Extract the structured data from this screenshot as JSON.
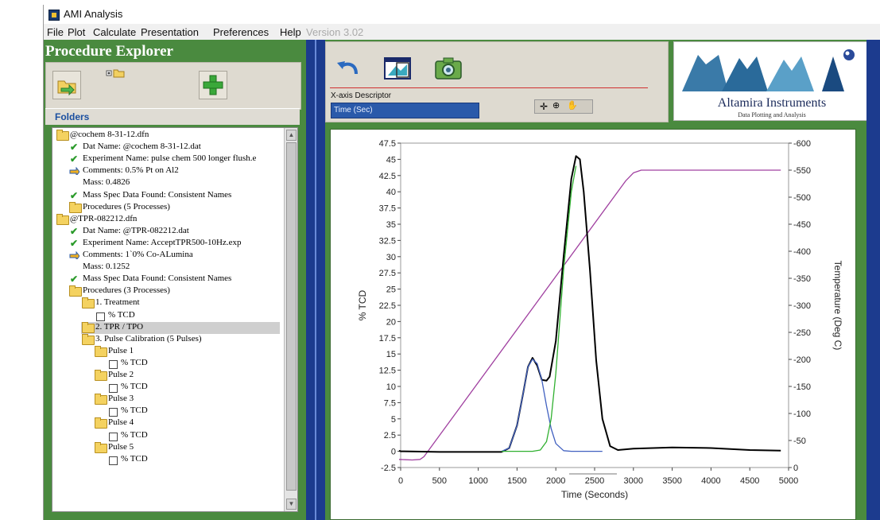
{
  "window": {
    "title": "AMI Analysis",
    "icon": "app-icon"
  },
  "menubar": {
    "items": [
      "File",
      "Plot",
      "Calculate",
      "Presentation",
      "Preferences",
      "Help"
    ],
    "version": "Version 3.02"
  },
  "explorer": {
    "title": "Procedure Explorer",
    "toolbar": {
      "open_icon": "folder-open-arrow-icon",
      "expand_icon": "expand-folders-icon",
      "add_icon": "green-plus-icon"
    },
    "folders_tab": "Folders",
    "tree": [
      {
        "indent": 0,
        "icon": "folder",
        "text": "@cochem 8-31-12.dfn"
      },
      {
        "indent": 1,
        "icon": "check",
        "text": "Dat Name: @cochem 8-31-12.dat"
      },
      {
        "indent": 1,
        "icon": "check",
        "text": "Experiment Name: pulse chem 500 longer flush.e"
      },
      {
        "indent": 1,
        "icon": "comment",
        "text": "Comments: 0.5% Pt on Al2"
      },
      {
        "indent": 1,
        "icon": "none",
        "text": "Mass: 0.4826"
      },
      {
        "indent": 1,
        "icon": "check",
        "text": "Mass Spec Data Found: Consistent Names"
      },
      {
        "indent": 1,
        "icon": "folder",
        "text": "Procedures (5 Processes)"
      },
      {
        "indent": 0,
        "icon": "folder",
        "text": "@TPR-082212.dfn"
      },
      {
        "indent": 1,
        "icon": "check",
        "text": "Dat Name: @TPR-082212.dat"
      },
      {
        "indent": 1,
        "icon": "check",
        "text": "Experiment Name: AcceptTPR500-10Hz.exp"
      },
      {
        "indent": 1,
        "icon": "comment",
        "text": "Comments: 1`0% Co-ALumina"
      },
      {
        "indent": 1,
        "icon": "none",
        "text": "Mass: 0.1252"
      },
      {
        "indent": 1,
        "icon": "check",
        "text": "Mass Spec Data Found: Consistent Names"
      },
      {
        "indent": 1,
        "icon": "folder",
        "text": "Procedures (3 Processes)"
      },
      {
        "indent": 2,
        "icon": "folder",
        "text": "1. Treatment"
      },
      {
        "indent": 3,
        "icon": "box",
        "text": "% TCD"
      },
      {
        "indent": 2,
        "icon": "folder",
        "text": "2. TPR / TPO",
        "selected": true
      },
      {
        "indent": 2,
        "icon": "folder",
        "text": "3. Pulse Calibration (5 Pulses)"
      },
      {
        "indent": 3,
        "icon": "folder",
        "text": "Pulse 1"
      },
      {
        "indent": 4,
        "icon": "box",
        "text": "% TCD"
      },
      {
        "indent": 3,
        "icon": "folder",
        "text": "Pulse 2"
      },
      {
        "indent": 4,
        "icon": "box",
        "text": "% TCD"
      },
      {
        "indent": 3,
        "icon": "folder",
        "text": "Pulse 3"
      },
      {
        "indent": 4,
        "icon": "box",
        "text": "% TCD"
      },
      {
        "indent": 3,
        "icon": "folder",
        "text": "Pulse 4"
      },
      {
        "indent": 4,
        "icon": "box",
        "text": "% TCD"
      },
      {
        "indent": 3,
        "icon": "folder",
        "text": "Pulse 5"
      },
      {
        "indent": 4,
        "icon": "box",
        "text": "% TCD"
      }
    ]
  },
  "controls": {
    "undo_icon": "undo-arrow-icon",
    "window_icon": "window-plot-icon",
    "camera_icon": "camera-icon",
    "x_axis_label": "X-axis Descriptor",
    "x_axis_value": "Time (Sec)",
    "graph_tools": [
      "crosshair-icon",
      "zoom-icon",
      "pan-hand-icon"
    ]
  },
  "logo": {
    "name": "Altamira Instruments",
    "tagline": "Data Plotting and Analysis"
  },
  "colors": {
    "panel_green": "#4a8a3f",
    "divider_blue": "#1c3b8e",
    "temperature": "#a040a0",
    "tcd": "#000000",
    "peak1": "#4060c0",
    "peak2": "#30b030"
  },
  "chart_data": {
    "type": "line",
    "xlabel": "Time (Seconds)",
    "ylabel": "% TCD",
    "y2label": "Temperature (Deg C)",
    "xlim": [
      0,
      5000
    ],
    "ylim": [
      -2.5,
      47.5
    ],
    "y2lim": [
      0,
      -600
    ],
    "x_ticks": [
      0,
      500,
      1000,
      1500,
      2000,
      2500,
      3000,
      3500,
      4000,
      4500,
      5000
    ],
    "y_ticks": [
      -2.5,
      0,
      2.5,
      5,
      7.5,
      10,
      12.5,
      15,
      17.5,
      20,
      22.5,
      25,
      27.5,
      30,
      32.5,
      35,
      37.5,
      40,
      42.5,
      45,
      47.5
    ],
    "y_tick_labels": [
      "-2.5",
      "0",
      "2.5",
      "5",
      "7.5",
      "10",
      "12.5",
      "15",
      "17.5",
      "20",
      "22.5",
      "25",
      "27.5",
      "30",
      "32.5",
      "35",
      "37.5",
      "40",
      "42.5",
      "45",
      "47.5"
    ],
    "y2_ticks": [
      0,
      -50,
      -100,
      -150,
      -200,
      -250,
      -300,
      -350,
      -400,
      -450,
      -500,
      -550,
      -600
    ],
    "series": [
      {
        "key": "temperature",
        "axis": "y2",
        "x": [
          -200,
          150,
          250,
          300,
          2900,
          3000,
          3100,
          3500,
          4000,
          4500,
          4900
        ],
        "y": [
          -15,
          -14,
          -15,
          -20,
          -530,
          -545,
          -550,
          -550,
          -550,
          -550,
          -550
        ]
      },
      {
        "key": "tcd",
        "axis": "y1",
        "x": [
          -200,
          0,
          500,
          1000,
          1300,
          1400,
          1500,
          1580,
          1640,
          1700,
          1760,
          1820,
          1880,
          1920,
          2000,
          2100,
          2200,
          2260,
          2310,
          2360,
          2440,
          2520,
          2600,
          2700,
          2800,
          3000,
          3500,
          4000,
          4500,
          4900
        ],
        "y": [
          0.1,
          0,
          -0.1,
          -0.1,
          -0.1,
          0.5,
          4,
          9,
          13,
          14.4,
          13.2,
          11,
          10.9,
          11.5,
          17,
          30,
          42,
          45.5,
          45,
          40,
          28,
          14,
          5,
          0.8,
          0.2,
          0.4,
          0.6,
          0.5,
          0.2,
          0.1
        ]
      },
      {
        "key": "peak1",
        "axis": "y1",
        "x": [
          1300,
          1400,
          1500,
          1580,
          1640,
          1700,
          1760,
          1820,
          1880,
          1940,
          2000,
          2100,
          2200,
          2400,
          2600
        ],
        "y": [
          0,
          0.5,
          4,
          9,
          13,
          14.2,
          13.5,
          11,
          7,
          3.5,
          1.2,
          0.1,
          0,
          0,
          0
        ]
      },
      {
        "key": "peak2",
        "axis": "y1",
        "x": [
          1300,
          1700,
          1800,
          1880,
          1940,
          2000,
          2100,
          2200,
          2260
        ],
        "y": [
          0,
          0,
          0.2,
          1.5,
          5,
          12,
          28,
          40,
          44
        ]
      }
    ]
  }
}
